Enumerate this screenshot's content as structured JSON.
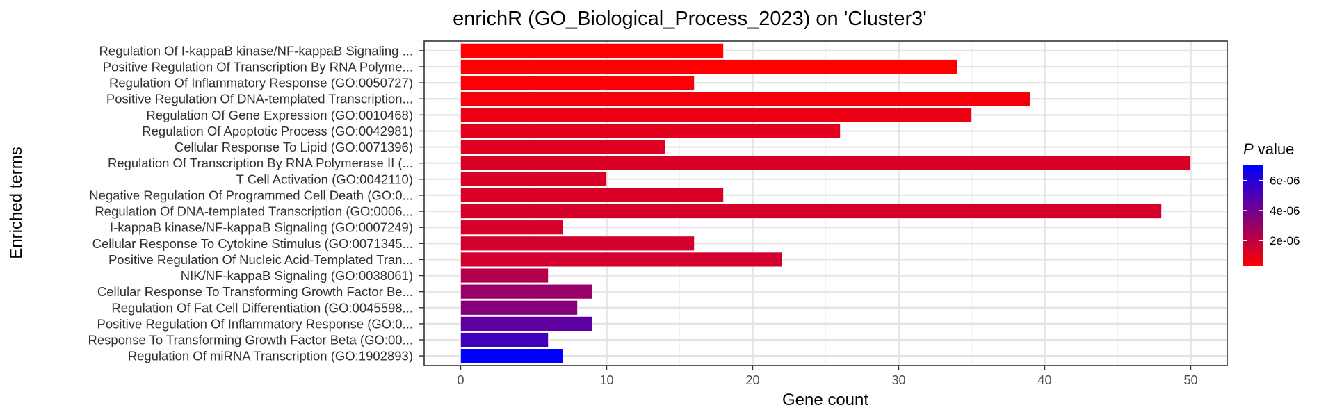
{
  "chart_data": {
    "type": "bar",
    "orientation": "horizontal",
    "title": "enrichR (GO_Biological_Process_2023) on 'Cluster3'",
    "xlabel": "Gene count",
    "ylabel": "Enriched terms",
    "xlim": [
      -2.5,
      52.5
    ],
    "xticks": [
      0,
      10,
      20,
      30,
      40,
      50
    ],
    "grid": true,
    "categories": [
      "Regulation Of I-kappaB kinase/NF-kappaB Signaling ...",
      "Positive Regulation Of Transcription By RNA Polyme...",
      "Regulation Of Inflammatory Response (GO:0050727)",
      "Positive Regulation Of DNA-templated Transcription...",
      "Regulation Of Gene Expression (GO:0010468)",
      "Regulation Of Apoptotic Process (GO:0042981)",
      "Cellular Response To Lipid (GO:0071396)",
      "Regulation Of Transcription By RNA Polymerase II (...",
      "T Cell Activation (GO:0042110)",
      "Negative Regulation Of Programmed Cell Death (GO:0...",
      "Regulation Of DNA-templated Transcription (GO:0006...",
      "I-kappaB kinase/NF-kappaB Signaling (GO:0007249)",
      "Cellular Response To Cytokine Stimulus (GO:0071345...",
      "Positive Regulation Of Nucleic Acid-Templated Tran...",
      "NIK/NF-kappaB Signaling (GO:0038061)",
      "Cellular Response To Transforming Growth Factor Be...",
      "Regulation Of Fat Cell Differentiation (GO:0045598...",
      "Positive Regulation Of Inflammatory Response (GO:0...",
      "Response To Transforming Growth Factor Beta (GO:00...",
      "Regulation Of miRNA Transcription (GO:1902893)"
    ],
    "values": [
      18,
      34,
      16,
      39,
      35,
      26,
      14,
      50,
      10,
      18,
      48,
      7,
      16,
      22,
      6,
      9,
      8,
      9,
      6,
      7
    ],
    "p_values": [
      3e-07,
      3e-07,
      4e-07,
      6e-07,
      8e-07,
      1.1e-06,
      1.2e-06,
      1.3e-06,
      1.3e-06,
      1.3e-06,
      1.4e-06,
      1.4e-06,
      1.5e-06,
      1.5e-06,
      2.3e-06,
      3e-06,
      3.5e-06,
      4.5e-06,
      5.3e-06,
      7e-06
    ],
    "color_legend": {
      "title_italic": "P",
      "title_rest": " value",
      "ticks": [
        2e-06,
        4e-06,
        6e-06
      ],
      "tick_labels": [
        "2e-06",
        "4e-06",
        "6e-06"
      ],
      "range": [
        3e-07,
        7e-06
      ],
      "low_color": "#FF0000",
      "high_color": "#0000FF",
      "position": "right"
    }
  }
}
